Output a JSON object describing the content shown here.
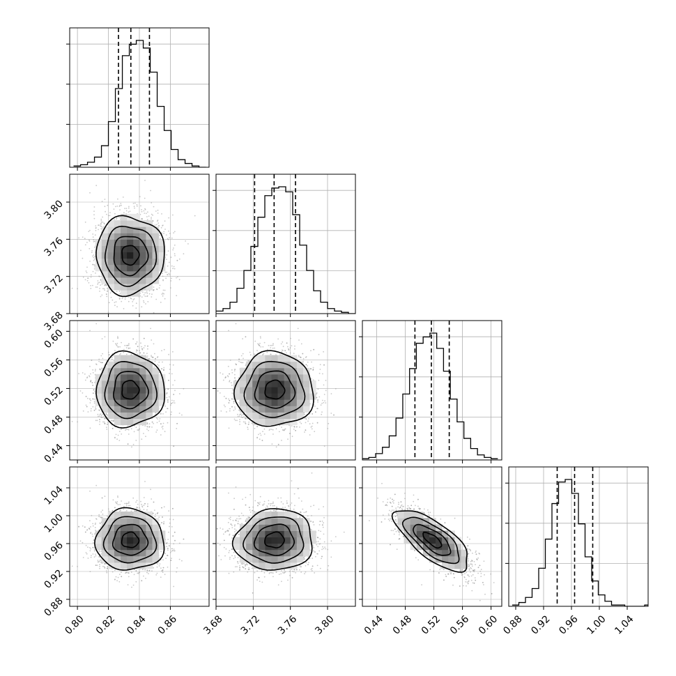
{
  "chart_data": {
    "type": "corner",
    "parameters": 4,
    "grid": true,
    "panel_ranges": [
      [
        0.795,
        0.885
      ],
      [
        3.68,
        3.83
      ],
      [
        0.42,
        0.615
      ],
      [
        0.87,
        1.07
      ]
    ],
    "ticks": [
      [
        "0.80",
        "0.82",
        "0.84",
        "0.86"
      ],
      [
        "3.68",
        "3.72",
        "3.76",
        "3.80"
      ],
      [
        "0.44",
        "0.48",
        "0.52",
        "0.56",
        "0.60"
      ],
      [
        "0.88",
        "0.92",
        "0.96",
        "1.00",
        "1.04"
      ]
    ],
    "tick_values": [
      [
        0.8,
        0.82,
        0.84,
        0.86
      ],
      [
        3.68,
        3.72,
        3.76,
        3.8
      ],
      [
        0.44,
        0.48,
        0.52,
        0.56,
        0.6
      ],
      [
        0.88,
        0.92,
        0.96,
        1.0,
        1.04
      ]
    ],
    "histograms": [
      {
        "param": 0,
        "bin_width": 0.0045,
        "start": 0.7975,
        "counts": [
          1,
          2,
          4,
          8,
          17,
          36,
          62,
          88,
          97,
          100,
          94,
          75,
          48,
          29,
          14,
          6,
          3,
          1,
          0
        ],
        "quantiles": [
          0.8265,
          0.8345,
          0.8465
        ]
      },
      {
        "param": 1,
        "bin_width": 0.0075,
        "start": 3.68,
        "counts": [
          2,
          4,
          9,
          20,
          34,
          53,
          76,
          93,
          99,
          100,
          96,
          78,
          54,
          34,
          18,
          9,
          4,
          2,
          1,
          0
        ],
        "quantiles": [
          3.7215,
          3.7425,
          3.7655
        ]
      },
      {
        "param": 2,
        "bin_width": 0.0095,
        "start": 0.4195,
        "counts": [
          1,
          2,
          5,
          10,
          19,
          33,
          52,
          72,
          92,
          97,
          100,
          88,
          70,
          48,
          30,
          17,
          9,
          4,
          2,
          1
        ],
        "quantiles": [
          0.4935,
          0.5165,
          0.5415
        ]
      },
      {
        "param": 3,
        "bin_width": 0.0095,
        "start": 0.875,
        "counts": [
          1,
          3,
          7,
          14,
          30,
          53,
          81,
          98,
          100,
          89,
          65,
          39,
          20,
          9,
          4,
          1,
          1,
          0,
          0,
          0,
          1
        ],
        "quantiles": [
          0.9395,
          0.9645,
          0.9905
        ]
      }
    ],
    "pairs": [
      {
        "x": 0,
        "y": 1,
        "mean": [
          0.834,
          3.743
        ],
        "sd": [
          0.011,
          0.021
        ],
        "rho": 0.0
      },
      {
        "x": 0,
        "y": 2,
        "mean": [
          0.834,
          0.518
        ],
        "sd": [
          0.011,
          0.026
        ],
        "rho": 0.0
      },
      {
        "x": 1,
        "y": 2,
        "mean": [
          3.743,
          0.518
        ],
        "sd": [
          0.021,
          0.026
        ],
        "rho": 0.0
      },
      {
        "x": 0,
        "y": 3,
        "mean": [
          0.834,
          0.965
        ],
        "sd": [
          0.011,
          0.022
        ],
        "rho": 0.0
      },
      {
        "x": 1,
        "y": 3,
        "mean": [
          3.743,
          0.965
        ],
        "sd": [
          0.021,
          0.022
        ],
        "rho": 0.05
      },
      {
        "x": 2,
        "y": 3,
        "mean": [
          0.518,
          0.965
        ],
        "sd": [
          0.026,
          0.022
        ],
        "rho": -0.72
      }
    ],
    "contour_levels_sigma": [
      0.5,
      1.0,
      1.5,
      2.0
    ],
    "colors": {
      "line": "#000000",
      "grid": "#b0b0b0",
      "scatter": "#9a9a9a",
      "density": "#000000"
    }
  }
}
